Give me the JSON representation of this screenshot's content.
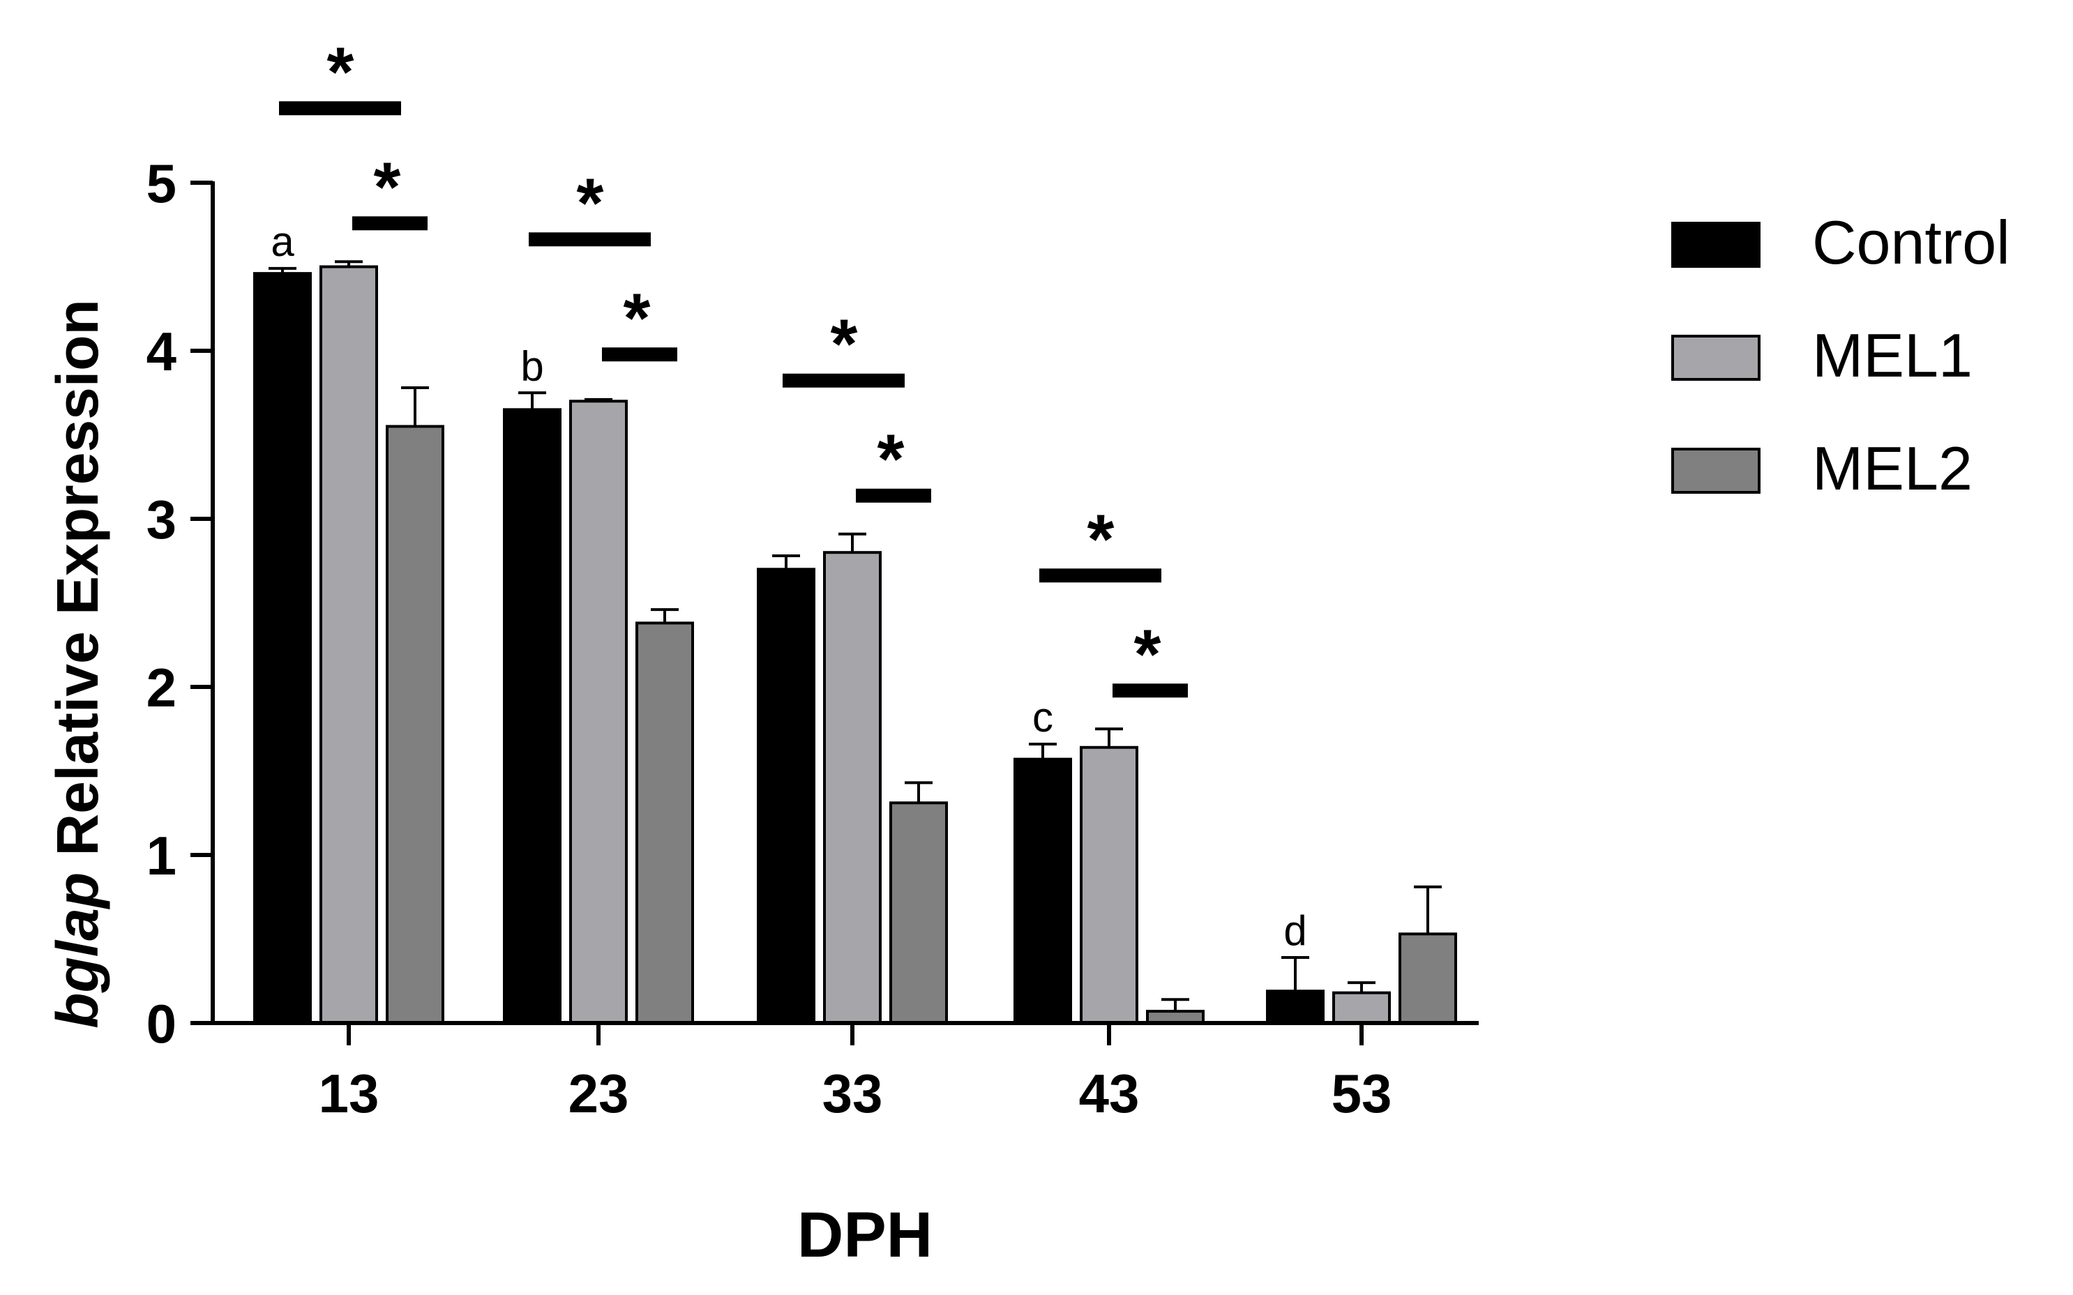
{
  "chart_data": {
    "type": "bar",
    "xlabel": "DPH",
    "ylabel_italic": "bglap",
    "ylabel_rest": " Relative Expression",
    "categories": [
      "13",
      "23",
      "33",
      "43",
      "53"
    ],
    "ylim": [
      0,
      5
    ],
    "yticks": [
      0,
      1,
      2,
      3,
      4,
      5
    ],
    "legend_position": "right",
    "grid": false,
    "series": [
      {
        "name": "Control",
        "color": "#000000",
        "values": [
          4.46,
          3.65,
          2.7,
          1.57,
          0.19
        ],
        "errors": [
          0.03,
          0.1,
          0.08,
          0.09,
          0.2
        ]
      },
      {
        "name": "MEL1",
        "color": "#a6a5aa",
        "values": [
          4.5,
          3.7,
          2.8,
          1.64,
          0.18
        ],
        "errors": [
          0.03,
          0.01,
          0.11,
          0.11,
          0.06
        ]
      },
      {
        "name": "MEL2",
        "color": "#808080",
        "values": [
          3.55,
          2.38,
          1.31,
          0.07,
          0.53
        ],
        "errors": [
          0.23,
          0.08,
          0.12,
          0.07,
          0.28
        ]
      }
    ],
    "letter_labels": [
      "a",
      "b",
      "",
      "c",
      "d"
    ],
    "significance_marker": "*",
    "significance_categories": [
      "13",
      "23",
      "33",
      "43"
    ]
  }
}
